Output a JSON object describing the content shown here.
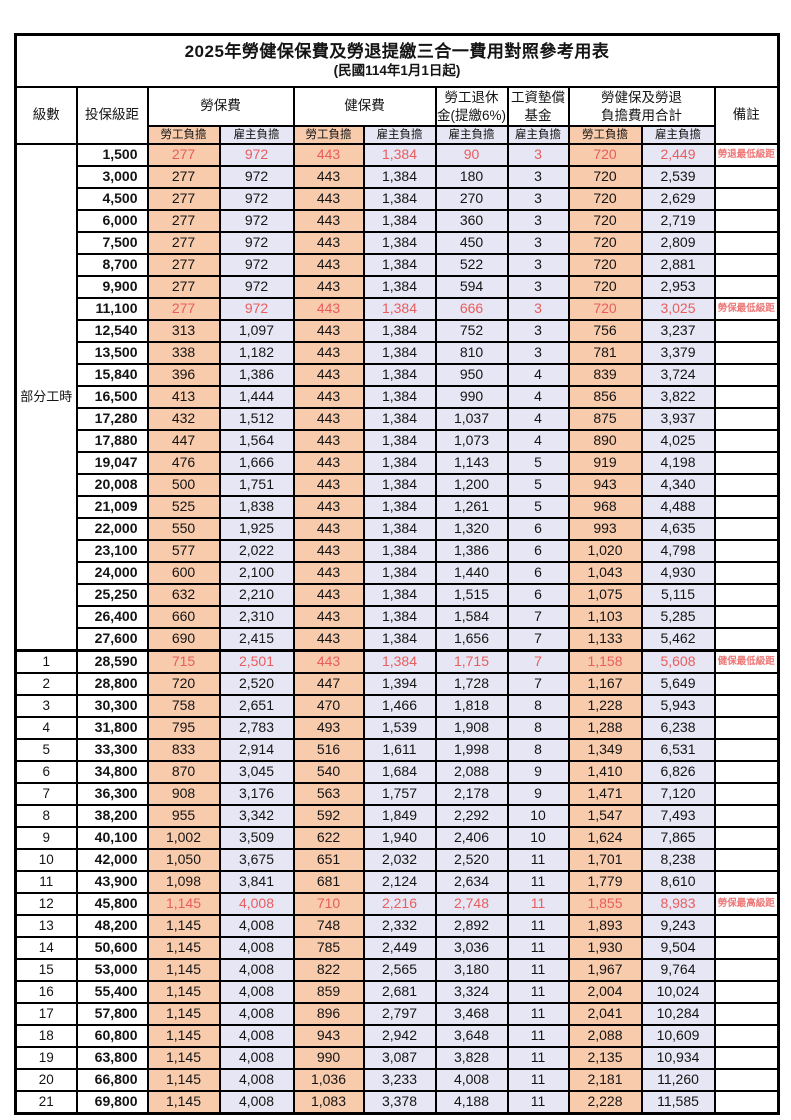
{
  "title": "2025年勞健保保費及勞退提繳三合一費用對照參考用表",
  "subtitle": "(民國114年1月1日起)",
  "columns": {
    "level": "級數",
    "salary": "投保級距",
    "labor_ins": "勞保費",
    "health_ins": "健保費",
    "pension": [
      "勞工退休",
      "金(提繳6%)"
    ],
    "wage_fund": [
      "工資墊償",
      "基金"
    ],
    "total": [
      "勞健保及勞退",
      "負擔費用合計"
    ],
    "note": "備註",
    "employee_label": "勞工負擔",
    "employer_label": "雇主負擔"
  },
  "part_time_label": "部分工時",
  "colors": {
    "employee_bg": "#f8cbad",
    "employer_bg": "#e7e6f4",
    "highlight_red": "#e85d5d",
    "note_red": "#ed7878"
  },
  "rows": [
    {
      "level": "",
      "salary": "1,500",
      "values": [
        "277",
        "972",
        "443",
        "1,384",
        "90",
        "3",
        "720",
        "2,449"
      ],
      "note": "勞退最低級距",
      "highlight": true
    },
    {
      "level": "",
      "salary": "3,000",
      "values": [
        "277",
        "972",
        "443",
        "1,384",
        "180",
        "3",
        "720",
        "2,539"
      ],
      "note": ""
    },
    {
      "level": "",
      "salary": "4,500",
      "values": [
        "277",
        "972",
        "443",
        "1,384",
        "270",
        "3",
        "720",
        "2,629"
      ],
      "note": ""
    },
    {
      "level": "",
      "salary": "6,000",
      "values": [
        "277",
        "972",
        "443",
        "1,384",
        "360",
        "3",
        "720",
        "2,719"
      ],
      "note": ""
    },
    {
      "level": "",
      "salary": "7,500",
      "values": [
        "277",
        "972",
        "443",
        "1,384",
        "450",
        "3",
        "720",
        "2,809"
      ],
      "note": ""
    },
    {
      "level": "",
      "salary": "8,700",
      "values": [
        "277",
        "972",
        "443",
        "1,384",
        "522",
        "3",
        "720",
        "2,881"
      ],
      "note": ""
    },
    {
      "level": "",
      "salary": "9,900",
      "values": [
        "277",
        "972",
        "443",
        "1,384",
        "594",
        "3",
        "720",
        "2,953"
      ],
      "note": ""
    },
    {
      "level": "",
      "salary": "11,100",
      "values": [
        "277",
        "972",
        "443",
        "1,384",
        "666",
        "3",
        "720",
        "3,025"
      ],
      "note": "勞保最低級距",
      "highlight": true
    },
    {
      "level": "",
      "salary": "12,540",
      "values": [
        "313",
        "1,097",
        "443",
        "1,384",
        "752",
        "3",
        "756",
        "3,237"
      ],
      "note": ""
    },
    {
      "level": "",
      "salary": "13,500",
      "values": [
        "338",
        "1,182",
        "443",
        "1,384",
        "810",
        "3",
        "781",
        "3,379"
      ],
      "note": ""
    },
    {
      "level": "",
      "salary": "15,840",
      "values": [
        "396",
        "1,386",
        "443",
        "1,384",
        "950",
        "4",
        "839",
        "3,724"
      ],
      "note": ""
    },
    {
      "level": "",
      "salary": "16,500",
      "values": [
        "413",
        "1,444",
        "443",
        "1,384",
        "990",
        "4",
        "856",
        "3,822"
      ],
      "note": ""
    },
    {
      "level": "",
      "salary": "17,280",
      "values": [
        "432",
        "1,512",
        "443",
        "1,384",
        "1,037",
        "4",
        "875",
        "3,937"
      ],
      "note": ""
    },
    {
      "level": "",
      "salary": "17,880",
      "values": [
        "447",
        "1,564",
        "443",
        "1,384",
        "1,073",
        "4",
        "890",
        "4,025"
      ],
      "note": ""
    },
    {
      "level": "",
      "salary": "19,047",
      "values": [
        "476",
        "1,666",
        "443",
        "1,384",
        "1,143",
        "5",
        "919",
        "4,198"
      ],
      "note": ""
    },
    {
      "level": "",
      "salary": "20,008",
      "values": [
        "500",
        "1,751",
        "443",
        "1,384",
        "1,200",
        "5",
        "943",
        "4,340"
      ],
      "note": ""
    },
    {
      "level": "",
      "salary": "21,009",
      "values": [
        "525",
        "1,838",
        "443",
        "1,384",
        "1,261",
        "5",
        "968",
        "4,488"
      ],
      "note": ""
    },
    {
      "level": "",
      "salary": "22,000",
      "values": [
        "550",
        "1,925",
        "443",
        "1,384",
        "1,320",
        "6",
        "993",
        "4,635"
      ],
      "note": ""
    },
    {
      "level": "",
      "salary": "23,100",
      "values": [
        "577",
        "2,022",
        "443",
        "1,384",
        "1,386",
        "6",
        "1,020",
        "4,798"
      ],
      "note": ""
    },
    {
      "level": "",
      "salary": "24,000",
      "values": [
        "600",
        "2,100",
        "443",
        "1,384",
        "1,440",
        "6",
        "1,043",
        "4,930"
      ],
      "note": ""
    },
    {
      "level": "",
      "salary": "25,250",
      "values": [
        "632",
        "2,210",
        "443",
        "1,384",
        "1,515",
        "6",
        "1,075",
        "5,115"
      ],
      "note": ""
    },
    {
      "level": "",
      "salary": "26,400",
      "values": [
        "660",
        "2,310",
        "443",
        "1,384",
        "1,584",
        "7",
        "1,103",
        "5,285"
      ],
      "note": ""
    },
    {
      "level": "",
      "salary": "27,600",
      "values": [
        "690",
        "2,415",
        "443",
        "1,384",
        "1,656",
        "7",
        "1,133",
        "5,462"
      ],
      "note": ""
    },
    {
      "level": "1",
      "salary": "28,590",
      "values": [
        "715",
        "2,501",
        "443",
        "1,384",
        "1,715",
        "7",
        "1,158",
        "5,608"
      ],
      "note": "健保最低級距",
      "highlight": true,
      "section_start": true
    },
    {
      "level": "2",
      "salary": "28,800",
      "values": [
        "720",
        "2,520",
        "447",
        "1,394",
        "1,728",
        "7",
        "1,167",
        "5,649"
      ],
      "note": ""
    },
    {
      "level": "3",
      "salary": "30,300",
      "values": [
        "758",
        "2,651",
        "470",
        "1,466",
        "1,818",
        "8",
        "1,228",
        "5,943"
      ],
      "note": ""
    },
    {
      "level": "4",
      "salary": "31,800",
      "values": [
        "795",
        "2,783",
        "493",
        "1,539",
        "1,908",
        "8",
        "1,288",
        "6,238"
      ],
      "note": ""
    },
    {
      "level": "5",
      "salary": "33,300",
      "values": [
        "833",
        "2,914",
        "516",
        "1,611",
        "1,998",
        "8",
        "1,349",
        "6,531"
      ],
      "note": ""
    },
    {
      "level": "6",
      "salary": "34,800",
      "values": [
        "870",
        "3,045",
        "540",
        "1,684",
        "2,088",
        "9",
        "1,410",
        "6,826"
      ],
      "note": ""
    },
    {
      "level": "7",
      "salary": "36,300",
      "values": [
        "908",
        "3,176",
        "563",
        "1,757",
        "2,178",
        "9",
        "1,471",
        "7,120"
      ],
      "note": ""
    },
    {
      "level": "8",
      "salary": "38,200",
      "values": [
        "955",
        "3,342",
        "592",
        "1,849",
        "2,292",
        "10",
        "1,547",
        "7,493"
      ],
      "note": ""
    },
    {
      "level": "9",
      "salary": "40,100",
      "values": [
        "1,002",
        "3,509",
        "622",
        "1,940",
        "2,406",
        "10",
        "1,624",
        "7,865"
      ],
      "note": ""
    },
    {
      "level": "10",
      "salary": "42,000",
      "values": [
        "1,050",
        "3,675",
        "651",
        "2,032",
        "2,520",
        "11",
        "1,701",
        "8,238"
      ],
      "note": ""
    },
    {
      "level": "11",
      "salary": "43,900",
      "values": [
        "1,098",
        "3,841",
        "681",
        "2,124",
        "2,634",
        "11",
        "1,779",
        "8,610"
      ],
      "note": ""
    },
    {
      "level": "12",
      "salary": "45,800",
      "values": [
        "1,145",
        "4,008",
        "710",
        "2,216",
        "2,748",
        "11",
        "1,855",
        "8,983"
      ],
      "note": "勞保最高級距",
      "highlight": true
    },
    {
      "level": "13",
      "salary": "48,200",
      "values": [
        "1,145",
        "4,008",
        "748",
        "2,332",
        "2,892",
        "11",
        "1,893",
        "9,243"
      ],
      "note": ""
    },
    {
      "level": "14",
      "salary": "50,600",
      "values": [
        "1,145",
        "4,008",
        "785",
        "2,449",
        "3,036",
        "11",
        "1,930",
        "9,504"
      ],
      "note": ""
    },
    {
      "level": "15",
      "salary": "53,000",
      "values": [
        "1,145",
        "4,008",
        "822",
        "2,565",
        "3,180",
        "11",
        "1,967",
        "9,764"
      ],
      "note": ""
    },
    {
      "level": "16",
      "salary": "55,400",
      "values": [
        "1,145",
        "4,008",
        "859",
        "2,681",
        "3,324",
        "11",
        "2,004",
        "10,024"
      ],
      "note": ""
    },
    {
      "level": "17",
      "salary": "57,800",
      "values": [
        "1,145",
        "4,008",
        "896",
        "2,797",
        "3,468",
        "11",
        "2,041",
        "10,284"
      ],
      "note": ""
    },
    {
      "level": "18",
      "salary": "60,800",
      "values": [
        "1,145",
        "4,008",
        "943",
        "2,942",
        "3,648",
        "11",
        "2,088",
        "10,609"
      ],
      "note": ""
    },
    {
      "level": "19",
      "salary": "63,800",
      "values": [
        "1,145",
        "4,008",
        "990",
        "3,087",
        "3,828",
        "11",
        "2,135",
        "10,934"
      ],
      "note": ""
    },
    {
      "level": "20",
      "salary": "66,800",
      "values": [
        "1,145",
        "4,008",
        "1,036",
        "3,233",
        "4,008",
        "11",
        "2,181",
        "11,260"
      ],
      "note": ""
    },
    {
      "level": "21",
      "salary": "69,800",
      "values": [
        "1,145",
        "4,008",
        "1,083",
        "3,378",
        "4,188",
        "11",
        "2,228",
        "11,585"
      ],
      "note": ""
    }
  ]
}
